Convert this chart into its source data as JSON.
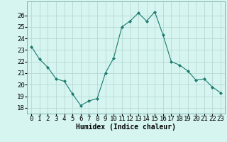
{
  "x": [
    0,
    1,
    2,
    3,
    4,
    5,
    6,
    7,
    8,
    9,
    10,
    11,
    12,
    13,
    14,
    15,
    16,
    17,
    18,
    19,
    20,
    21,
    22,
    23
  ],
  "y": [
    23.3,
    22.2,
    21.5,
    20.5,
    20.3,
    19.2,
    18.2,
    18.6,
    18.8,
    21.0,
    22.3,
    25.0,
    25.5,
    26.2,
    25.5,
    26.3,
    24.3,
    22.0,
    21.7,
    21.2,
    20.4,
    20.5,
    19.8,
    19.3
  ],
  "line_color": "#1a7a6e",
  "marker": "D",
  "marker_size": 2,
  "bg_color": "#d6f5f0",
  "grid_color": "#b8d8d4",
  "xlabel": "Humidex (Indice chaleur)",
  "ylim": [
    17.5,
    27.2
  ],
  "xlim": [
    -0.5,
    23.5
  ],
  "yticks": [
    18,
    19,
    20,
    21,
    22,
    23,
    24,
    25,
    26
  ],
  "xticks": [
    0,
    1,
    2,
    3,
    4,
    5,
    6,
    7,
    8,
    9,
    10,
    11,
    12,
    13,
    14,
    15,
    16,
    17,
    18,
    19,
    20,
    21,
    22,
    23
  ],
  "label_fontsize": 7,
  "tick_fontsize": 6.5
}
